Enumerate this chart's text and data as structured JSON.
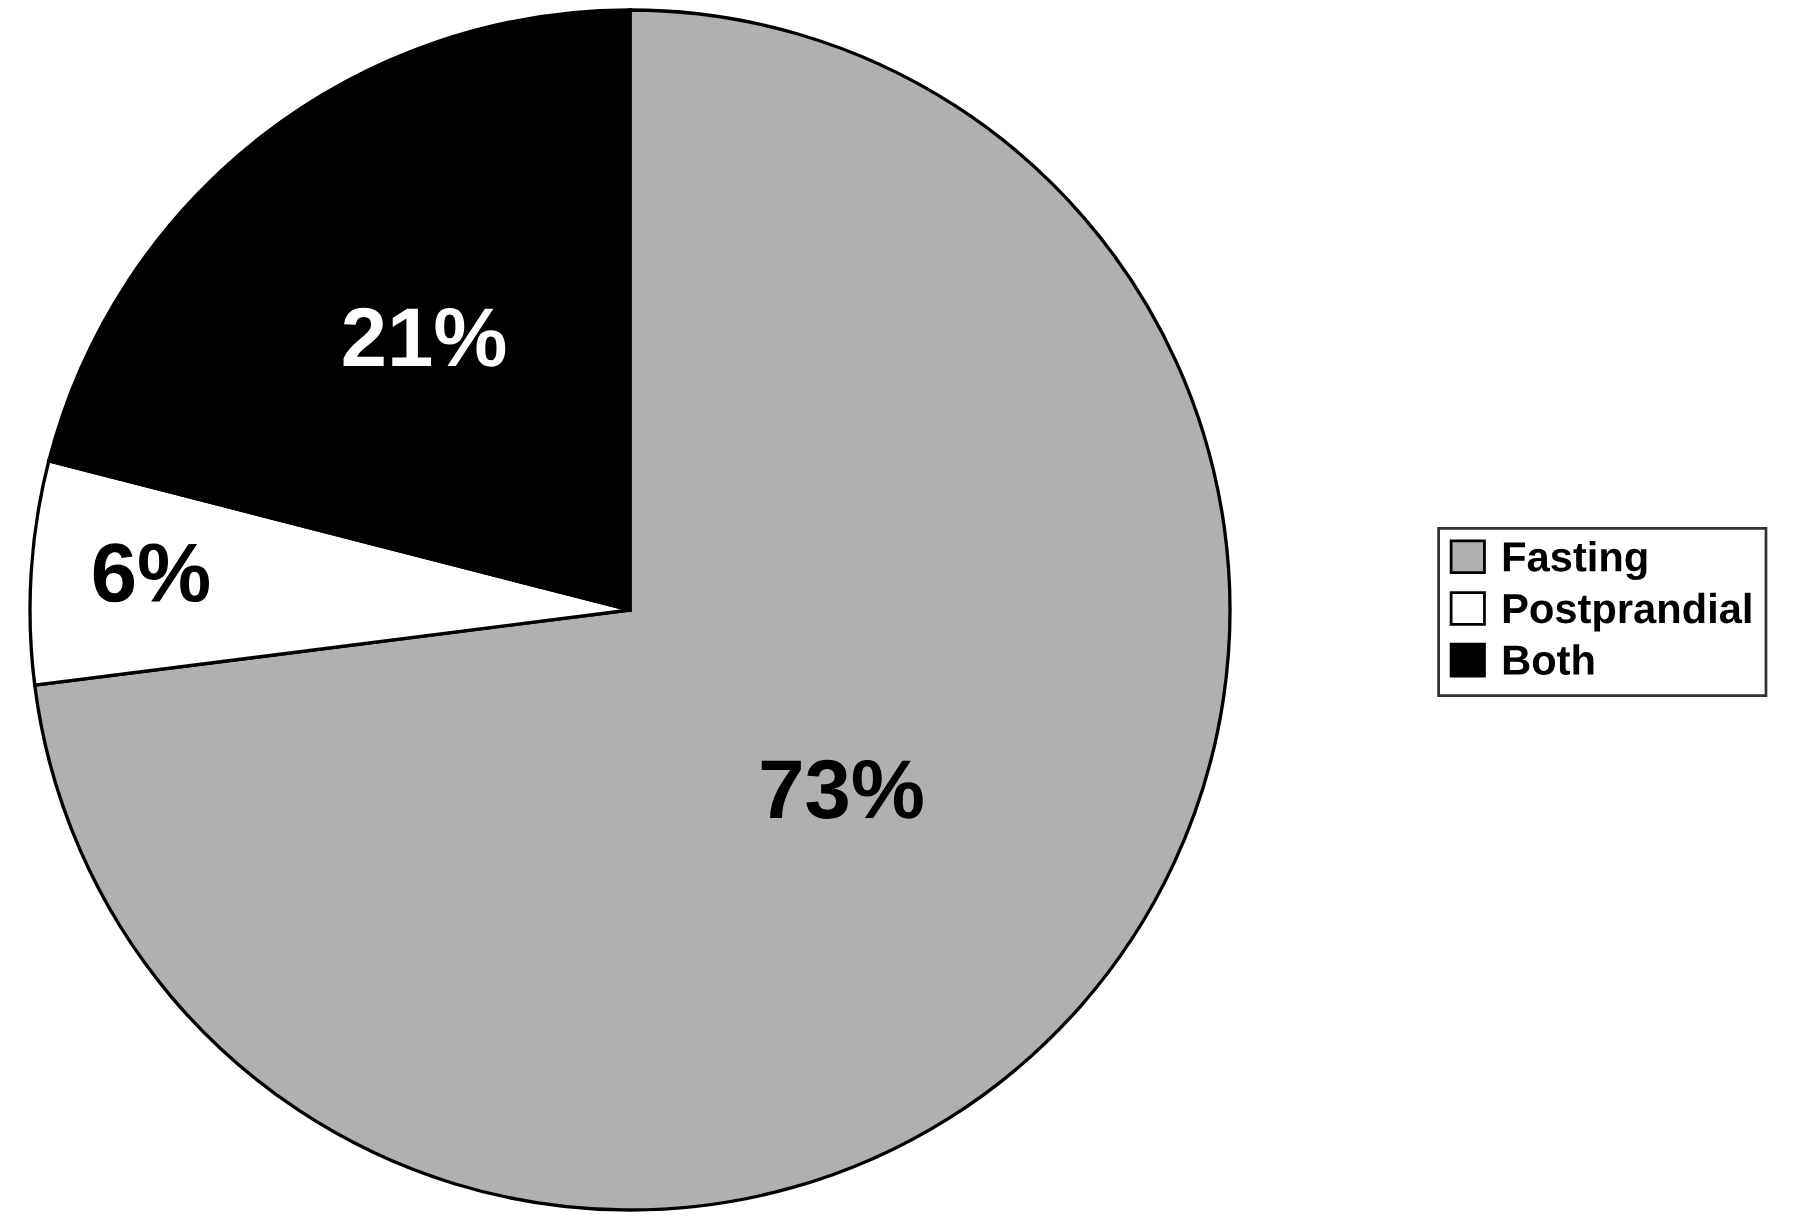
{
  "chart_data": {
    "type": "pie",
    "categories": [
      "Fasting",
      "Postprandial",
      "Both"
    ],
    "values": [
      73,
      6,
      21
    ],
    "colors": [
      "#b0b0b0",
      "#ffffff",
      "#000000"
    ],
    "value_labels": [
      "73%",
      "6%",
      "21%"
    ],
    "legend": "right"
  }
}
